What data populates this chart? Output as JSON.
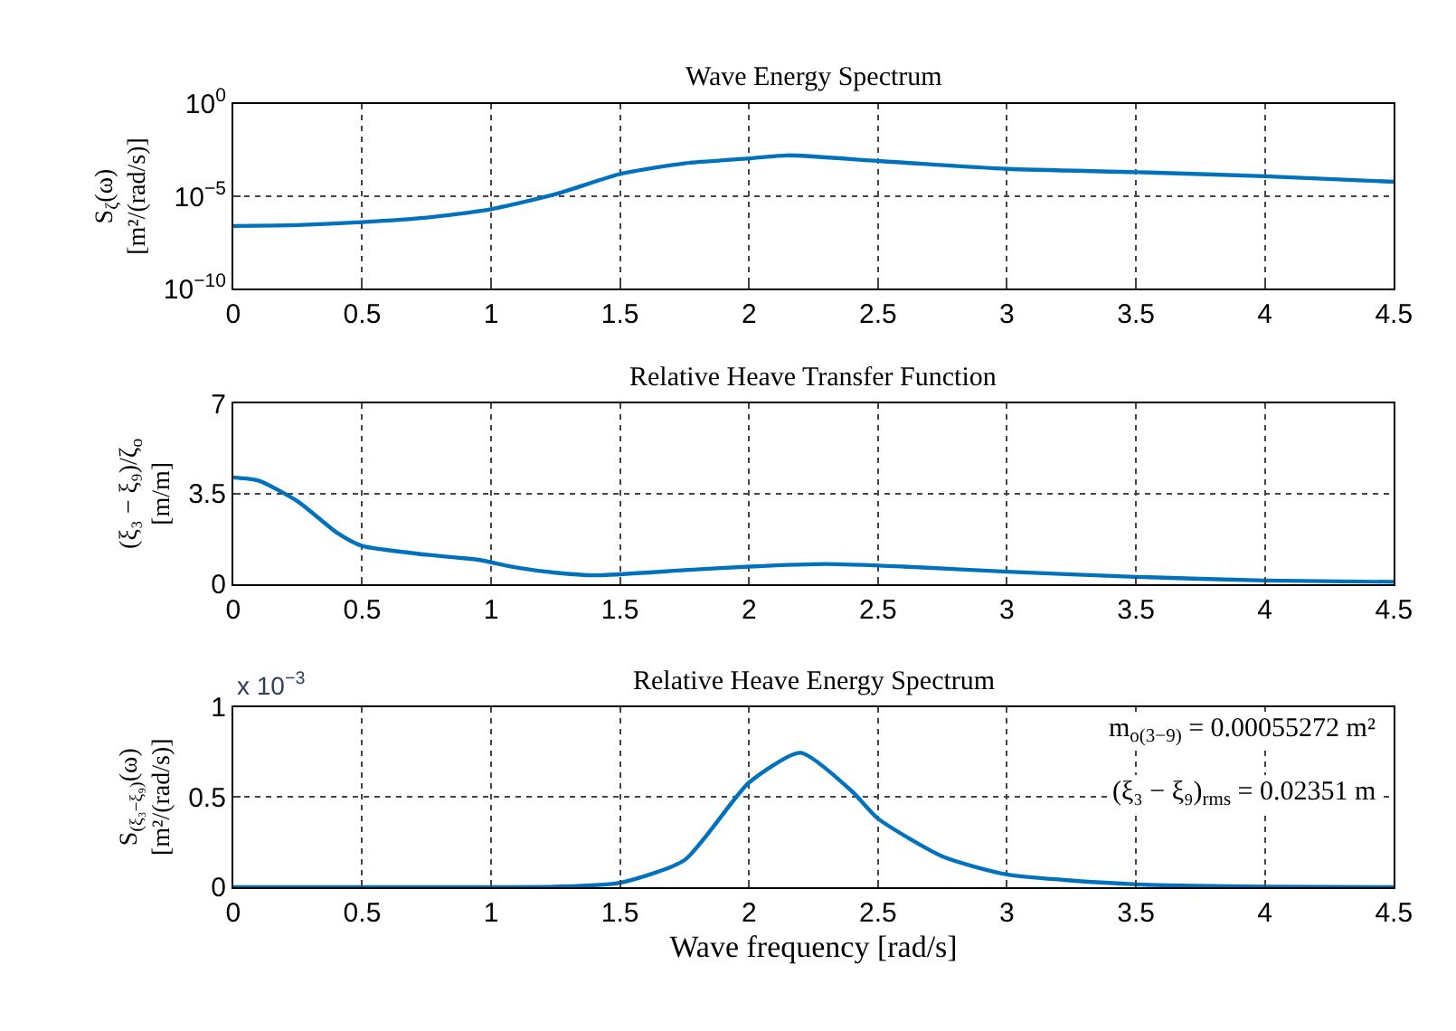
{
  "chart_data": [
    {
      "type": "line",
      "title": "Wave Energy Spectrum",
      "ylabel": "S$_{ζ}$(ω)\n[m²/(rad/s)]",
      "log": "y",
      "grid": true,
      "line_style": "solid",
      "marker": "none",
      "x": [
        0,
        0.25,
        0.5,
        0.75,
        1,
        1.25,
        1.5,
        1.75,
        2,
        2.15,
        2.5,
        3,
        3.5,
        4,
        4.5
      ],
      "series": [
        {
          "color": "#0072bd",
          "values": [
            2.5e-07,
            2.8e-07,
            4e-07,
            7e-07,
            2e-06,
            1.3e-05,
            0.00016,
            0.0006,
            0.0011,
            0.0016,
            0.0008,
            0.0003,
            0.0002,
            0.00012,
            6e-05
          ]
        }
      ],
      "xlim": [
        0,
        4.5
      ],
      "xticks": [
        0,
        0.5,
        1,
        1.5,
        2,
        2.5,
        3,
        3.5,
        4,
        4.5
      ],
      "ylim": [
        1e-10,
        1
      ],
      "yticks": [
        {
          "value": 1e-10,
          "label": "10$^{−10}$"
        },
        {
          "value": 1e-05,
          "label": "10$^{−5}$"
        },
        {
          "value": 1,
          "label": "10$^{0}$"
        }
      ]
    },
    {
      "type": "line",
      "title": "Relative Heave Transfer Function",
      "ylabel": "(ξ₃ − ξ₉)/ζ$_{o}$\n[m/m]",
      "grid": true,
      "line_style": "solid",
      "marker": "none",
      "x": [
        0,
        0.1,
        0.25,
        0.4,
        0.5,
        0.75,
        0.95,
        1.1,
        1.25,
        1.4,
        1.75,
        2,
        2.3,
        2.6,
        3,
        3.5,
        4,
        4.5
      ],
      "series": [
        {
          "color": "#0072bd",
          "values": [
            4.13,
            4.0,
            3.2,
            2.0,
            1.47,
            1.13,
            0.93,
            0.63,
            0.43,
            0.33,
            0.53,
            0.67,
            0.77,
            0.67,
            0.47,
            0.27,
            0.13,
            0.07
          ]
        }
      ],
      "xlim": [
        0,
        4.5
      ],
      "xticks": [
        0,
        0.5,
        1,
        1.5,
        2,
        2.5,
        3,
        3.5,
        4,
        4.5
      ],
      "ylim": [
        0,
        7
      ],
      "yticks": [
        0,
        3.5,
        7
      ]
    },
    {
      "type": "line",
      "title": "Relative Heave Energy Spectrum",
      "ylabel": "S$_{(ξ₃−ξ₉)}$(ω)\n[m²/(rad/s)]",
      "xlabel": "Wave frequency [rad/s]",
      "grid": true,
      "line_style": "solid",
      "marker": "none",
      "x": [
        0,
        0.5,
        1,
        1.25,
        1.5,
        1.75,
        2,
        2.2,
        2.4,
        2.5,
        2.75,
        3,
        3.5,
        4,
        4.5
      ],
      "series": [
        {
          "color": "#0072bd",
          "values": [
            0,
            0,
            0,
            0.002,
            0.024,
            0.15,
            0.58,
            0.745,
            0.53,
            0.38,
            0.17,
            0.07,
            0.015,
            0.002,
            0
          ]
        }
      ],
      "xlim": [
        0,
        4.5
      ],
      "xticks": [
        0,
        0.5,
        1,
        1.5,
        2,
        2.5,
        3,
        3.5,
        4,
        4.5
      ],
      "ylim": [
        0,
        1
      ],
      "yticks": [
        0,
        0.5,
        1
      ],
      "annotations": [
        "x 10$^{−3}$",
        "m$_{o(3−9)}$ = 0.00055272 m²",
        "(ξ₃ − ξ₉)$_{rms}$ = 0.02351 m"
      ]
    }
  ]
}
